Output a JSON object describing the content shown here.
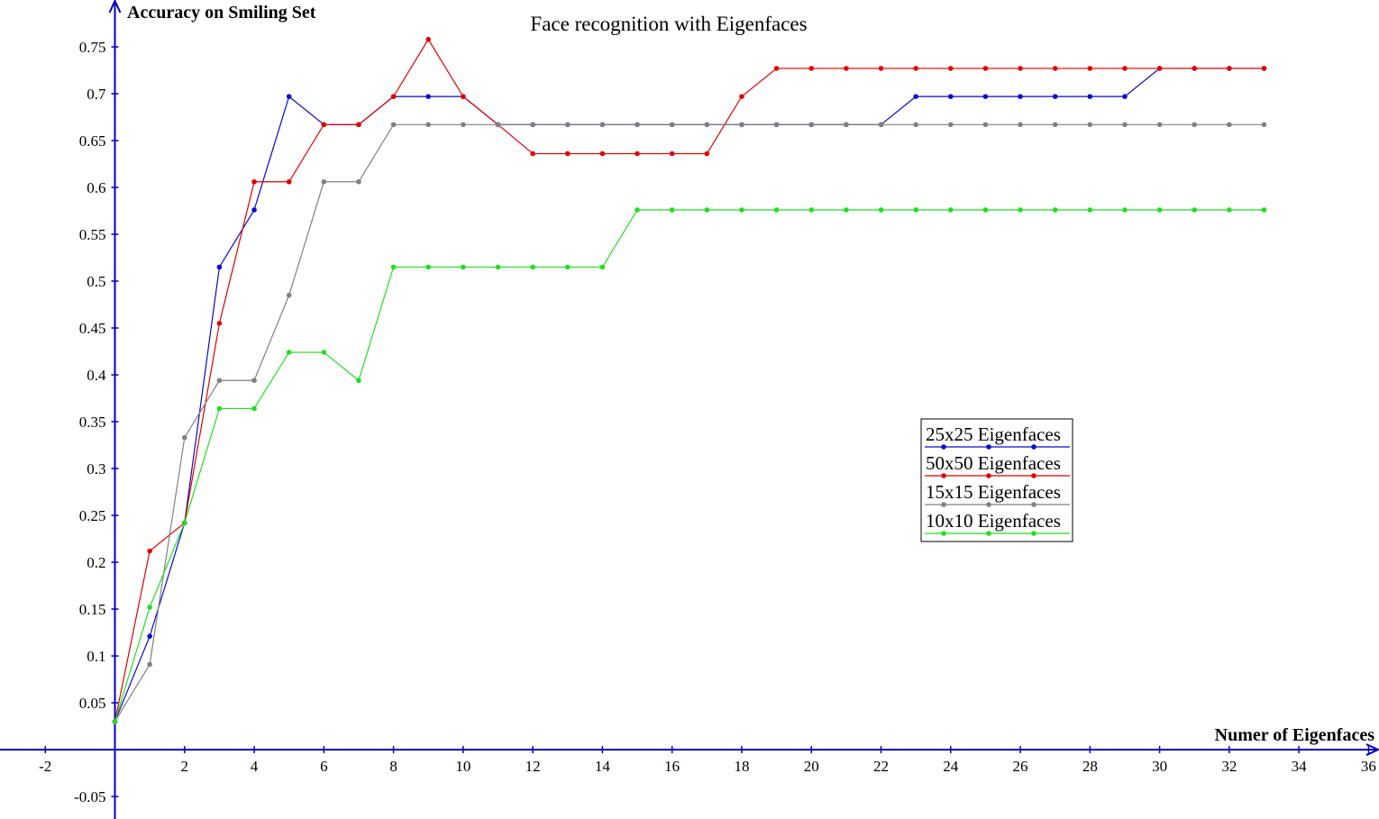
{
  "chart_data": {
    "type": "line",
    "title": "Face recognition with Eigenfaces",
    "x_label": "Numer of Eigenfaces",
    "y_label": "Accuracy on Smiling Set",
    "x": [
      0,
      1,
      2,
      3,
      4,
      5,
      6,
      7,
      8,
      9,
      10,
      11,
      12,
      13,
      14,
      15,
      16,
      17,
      18,
      19,
      20,
      21,
      22,
      23,
      24,
      25,
      26,
      27,
      28,
      29,
      30,
      31,
      32,
      33
    ],
    "series": [
      {
        "name": "25x25 Eigenfaces",
        "color": "#0a0ac8",
        "values": [
          0.03,
          0.121,
          0.242,
          0.515,
          0.576,
          0.697,
          0.667,
          0.667,
          0.697,
          0.697,
          0.697,
          0.667,
          0.667,
          0.667,
          0.667,
          0.667,
          0.667,
          0.667,
          0.667,
          0.667,
          0.667,
          0.667,
          0.667,
          0.697,
          0.697,
          0.697,
          0.697,
          0.697,
          0.697,
          0.697,
          0.727,
          0.727,
          0.727,
          0.727
        ]
      },
      {
        "name": "50x50 Eigenfaces",
        "color": "#e00000",
        "values": [
          0.03,
          0.212,
          0.242,
          0.455,
          0.606,
          0.606,
          0.667,
          0.667,
          0.697,
          0.758,
          0.697,
          0.667,
          0.636,
          0.636,
          0.636,
          0.636,
          0.636,
          0.636,
          0.697,
          0.727,
          0.727,
          0.727,
          0.727,
          0.727,
          0.727,
          0.727,
          0.727,
          0.727,
          0.727,
          0.727,
          0.727,
          0.727,
          0.727,
          0.727
        ]
      },
      {
        "name": "15x15 Eigenfaces",
        "color": "#808080",
        "values": [
          0.03,
          0.091,
          0.333,
          0.394,
          0.394,
          0.485,
          0.606,
          0.606,
          0.667,
          0.667,
          0.667,
          0.667,
          0.667,
          0.667,
          0.667,
          0.667,
          0.667,
          0.667,
          0.667,
          0.667,
          0.667,
          0.667,
          0.667,
          0.667,
          0.667,
          0.667,
          0.667,
          0.667,
          0.667,
          0.667,
          0.667,
          0.667,
          0.667,
          0.667
        ]
      },
      {
        "name": "10x10 Eigenfaces",
        "color": "#22dd22",
        "values": [
          0.03,
          0.152,
          0.242,
          0.364,
          0.364,
          0.424,
          0.424,
          0.394,
          0.515,
          0.515,
          0.515,
          0.515,
          0.515,
          0.515,
          0.515,
          0.576,
          0.576,
          0.576,
          0.576,
          0.576,
          0.576,
          0.576,
          0.576,
          0.576,
          0.576,
          0.576,
          0.576,
          0.576,
          0.576,
          0.576,
          0.576,
          0.576,
          0.576,
          0.576
        ]
      }
    ],
    "xlim": [
      -3.3,
      36.3
    ],
    "ylim": [
      -0.074,
      0.8
    ],
    "xticks": [
      -2,
      2,
      4,
      6,
      8,
      10,
      12,
      14,
      16,
      18,
      20,
      22,
      24,
      26,
      28,
      30,
      32,
      34,
      36
    ],
    "yticks": [
      -0.05,
      0.05,
      0.1,
      0.15,
      0.2,
      0.25,
      0.3,
      0.35,
      0.4,
      0.45,
      0.5,
      0.55,
      0.6,
      0.65,
      0.7,
      0.75
    ],
    "axis_color": "#0000c0"
  }
}
